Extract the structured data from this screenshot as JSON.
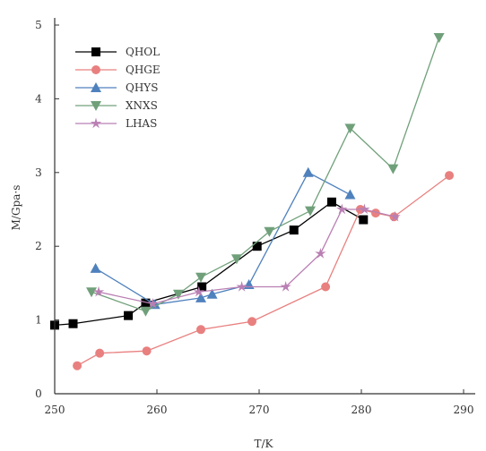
{
  "chart_data": {
    "type": "line",
    "xlabel": "T/K",
    "ylabel": "M/Gpa·s",
    "xlim": [
      250,
      290
    ],
    "ylim": [
      0,
      5
    ],
    "x_ticks": [
      250,
      260,
      270,
      280,
      290
    ],
    "x_tick_labels": [
      "250",
      "260",
      "270",
      "280",
      "290"
    ],
    "y_ticks": [
      0,
      1,
      2,
      3,
      4,
      5
    ],
    "y_tick_labels": [
      "0",
      "1",
      "2",
      "3",
      "4",
      "5"
    ],
    "legend_position": "top-left",
    "grid": false,
    "series": [
      {
        "name": "QHOL",
        "color": "#000000",
        "marker": "square",
        "x": [
          250,
          251.8,
          257.2,
          258.9,
          264.4,
          269.8,
          273.4,
          277.1,
          280.2
        ],
        "y": [
          0.93,
          0.95,
          1.06,
          1.23,
          1.45,
          2.0,
          2.22,
          2.6,
          2.36
        ]
      },
      {
        "name": "QHGE",
        "color": "#e8807f",
        "marker": "circle",
        "x": [
          252.2,
          254.4,
          259.0,
          264.3,
          269.3,
          276.5,
          279.9,
          281.4,
          283.2,
          288.6
        ],
        "y": [
          0.38,
          0.55,
          0.58,
          0.87,
          0.98,
          1.45,
          2.5,
          2.45,
          2.4,
          2.96
        ]
      },
      {
        "name": "QHYS",
        "color": "#4f81bd",
        "marker": "triangle-up",
        "x": [
          254.0,
          259.8,
          264.3,
          265.4,
          269.0,
          274.8,
          278.9
        ],
        "y": [
          1.7,
          1.21,
          1.3,
          1.35,
          1.48,
          3.0,
          2.7
        ]
      },
      {
        "name": "XNXS",
        "color": "#70a07a",
        "marker": "triangle-down",
        "x": [
          253.6,
          258.9,
          262.1,
          264.3,
          267.8,
          271.0,
          275.0,
          278.9,
          283.1,
          287.6
        ],
        "y": [
          1.38,
          1.12,
          1.35,
          1.58,
          1.83,
          2.2,
          2.48,
          3.6,
          3.05,
          4.83
        ]
      },
      {
        "name": "LHAS",
        "color": "#b97fb3",
        "marker": "star",
        "x": [
          254.3,
          259.6,
          264.1,
          268.3,
          272.6,
          276.0,
          278.1,
          280.3,
          283.3
        ],
        "y": [
          1.38,
          1.22,
          1.38,
          1.45,
          1.45,
          1.9,
          2.5,
          2.5,
          2.4
        ]
      }
    ]
  }
}
